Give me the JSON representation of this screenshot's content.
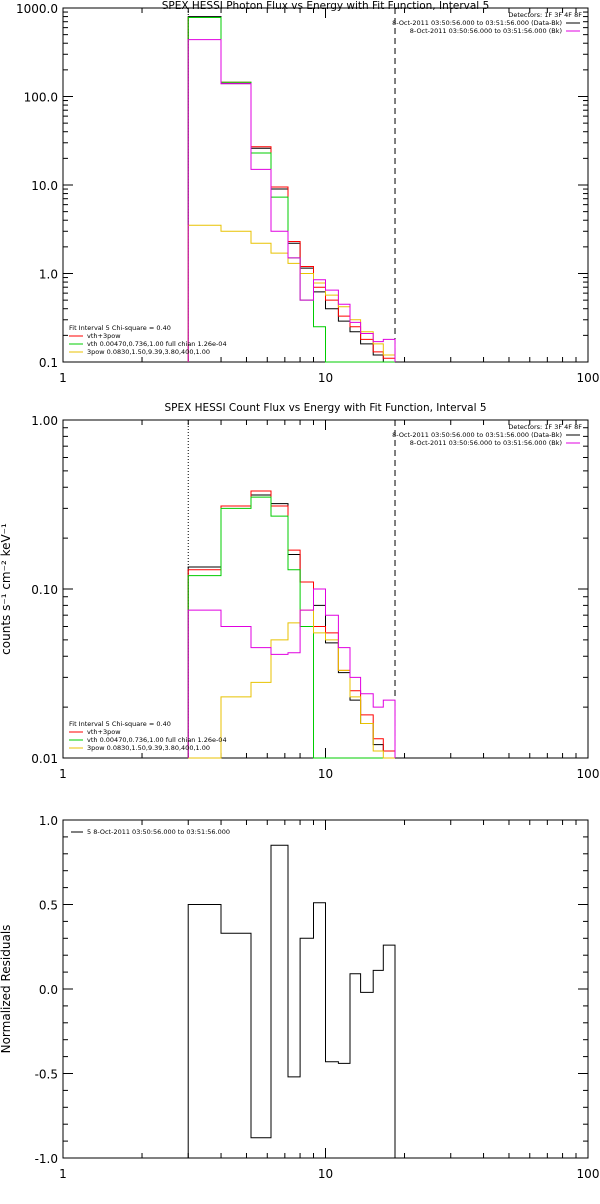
{
  "chart_data": [
    {
      "type": "line",
      "title": "SPEX HESSI Photon Flux vs Energy with Fit Function, Interval 5",
      "xlabel": "",
      "ylabel": "",
      "x_scale": "log",
      "y_scale": "log",
      "xlim": [
        1,
        100
      ],
      "ylim": [
        0.1,
        1000
      ],
      "x_ticks": [
        {
          "v": 1,
          "label": "1"
        },
        {
          "v": 10,
          "label": "10"
        },
        {
          "v": 100,
          "label": "100"
        }
      ],
      "y_ticks": [
        {
          "v": 1000,
          "label": "1000.0"
        },
        {
          "v": 100,
          "label": "100.0"
        },
        {
          "v": 10,
          "label": "10.0"
        },
        {
          "v": 1,
          "label": "1.0"
        },
        {
          "v": 0.1,
          "label": "0.1"
        }
      ],
      "vlines": [
        {
          "x": 3.0,
          "style": "dotted",
          "color": "#000000"
        },
        {
          "x": 18.4,
          "style": "dashed",
          "color": "#000000"
        }
      ],
      "edges": [
        3.0,
        4.0,
        5.2,
        6.2,
        7.2,
        8.0,
        9.0,
        10.0,
        11.2,
        12.4,
        13.6,
        15.2,
        16.6,
        18.4
      ],
      "series": [
        {
          "name": "",
          "color": "#000000",
          "values": [
            800,
            140,
            26,
            9,
            2.2,
            1.15,
            0.62,
            0.4,
            0.29,
            0.22,
            0.16,
            0.12,
            0.1
          ]
        },
        {
          "name": "vth+3pow",
          "color": "#ff0000",
          "values": [
            780,
            145,
            27,
            9.5,
            2.3,
            1.2,
            0.7,
            0.5,
            0.33,
            0.25,
            0.18,
            0.13,
            0.11
          ]
        },
        {
          "name": "vth 0.00470,0.736,1.00   full chian 1.26e-04",
          "color": "#00cc00",
          "values": [
            780,
            145,
            23,
            7.3,
            1.5,
            0.5,
            0.25,
            0.1,
            0.1,
            0.1,
            0.1,
            0.1,
            0.1
          ]
        },
        {
          "name": "3pow 0.0830,1.50,9.39,3.80,400,1.00",
          "color": "#e8c200",
          "values": [
            3.5,
            3.0,
            2.2,
            1.7,
            1.3,
            1.0,
            0.78,
            0.57,
            0.42,
            0.3,
            0.22,
            0.16,
            0.12
          ]
        },
        {
          "name": "",
          "color": "#e000e0",
          "values": [
            440,
            140,
            15,
            3.0,
            1.5,
            0.5,
            0.85,
            0.65,
            0.45,
            0.28,
            0.21,
            0.17,
            0.18
          ]
        }
      ],
      "legend_position": "bottom-left",
      "legend_header": "Fit Interval 5    Chi-square = 0.40",
      "detectors_text": "Detectors: 1F 3F 4F 8F",
      "time_lines": [
        {
          "text": "8-Oct-2011 03:50:56.000 to 03:51:56.000 (Data-Bk)",
          "color": "#000000"
        },
        {
          "text": "8-Oct-2011 03:50:56.000 to 03:51:56.000 (Bk)",
          "color": "#e000e0"
        }
      ]
    },
    {
      "type": "line",
      "title": "SPEX HESSI Count Flux vs Energy with Fit Function, Interval 5",
      "xlabel": "",
      "ylabel": "counts s⁻¹ cm⁻² keV⁻¹",
      "x_scale": "log",
      "y_scale": "log",
      "xlim": [
        1,
        100
      ],
      "ylim": [
        0.01,
        1.0
      ],
      "x_ticks": [
        {
          "v": 1,
          "label": "1"
        },
        {
          "v": 10,
          "label": "10"
        },
        {
          "v": 100,
          "label": "100"
        }
      ],
      "y_ticks": [
        {
          "v": 1.0,
          "label": "1.00"
        },
        {
          "v": 0.1,
          "label": "0.10"
        },
        {
          "v": 0.01,
          "label": "0.01"
        }
      ],
      "vlines": [
        {
          "x": 3.0,
          "style": "dotted",
          "color": "#000000"
        },
        {
          "x": 18.4,
          "style": "dashed",
          "color": "#000000"
        }
      ],
      "edges": [
        3.0,
        4.0,
        5.2,
        6.2,
        7.2,
        8.0,
        9.0,
        10.0,
        11.2,
        12.4,
        13.6,
        15.2,
        16.6,
        18.4
      ],
      "series": [
        {
          "name": "",
          "color": "#000000",
          "values": [
            0.135,
            0.31,
            0.36,
            0.32,
            0.16,
            0.11,
            0.08,
            0.048,
            0.032,
            0.022,
            0.016,
            0.012,
            0.011
          ]
        },
        {
          "name": "vth+3pow",
          "color": "#ff0000",
          "values": [
            0.13,
            0.31,
            0.38,
            0.31,
            0.17,
            0.11,
            0.06,
            0.055,
            0.033,
            0.025,
            0.018,
            0.013,
            0.011
          ]
        },
        {
          "name": "vth 0.00470,0.736,1.00   full chian 1.26e-04",
          "color": "#00cc00",
          "values": [
            0.12,
            0.3,
            0.35,
            0.27,
            0.13,
            0.06,
            0.01,
            0.01,
            0.01,
            0.01,
            0.01,
            0.01,
            0.01
          ]
        },
        {
          "name": "3pow 0.0830,1.50,9.39,3.80,400,1.00",
          "color": "#e8c200",
          "values": [
            0.005,
            0.023,
            0.028,
            0.05,
            0.063,
            0.075,
            0.055,
            0.05,
            0.033,
            0.023,
            0.016,
            0.011,
            0.008
          ]
        },
        {
          "name": "",
          "color": "#e000e0",
          "values": [
            0.075,
            0.06,
            0.045,
            0.041,
            0.042,
            0.075,
            0.1,
            0.07,
            0.045,
            0.03,
            0.024,
            0.02,
            0.022
          ]
        }
      ],
      "legend_position": "bottom-left",
      "legend_header": "Fit Interval 5    Chi-square = 0.40",
      "detectors_text": "Detectors: 1F 3F 4F 8F",
      "time_lines": [
        {
          "text": "8-Oct-2011 03:50:56.000 to 03:51:56.000 (Data-Bk)",
          "color": "#000000"
        },
        {
          "text": "8-Oct-2011 03:50:56.000 to 03:51:56.000 (Bk)",
          "color": "#e000e0"
        }
      ]
    },
    {
      "type": "line",
      "title": "",
      "xlabel": "",
      "ylabel": "Normalized Residuals",
      "x_scale": "log",
      "y_scale": "linear",
      "xlim": [
        1,
        100
      ],
      "ylim": [
        -1.0,
        1.0
      ],
      "x_ticks": [
        {
          "v": 1,
          "label": "1"
        },
        {
          "v": 10,
          "label": "10"
        },
        {
          "v": 100,
          "label": "100"
        }
      ],
      "y_ticks": [
        {
          "v": 1.0,
          "label": "1.0"
        },
        {
          "v": 0.5,
          "label": "0.5"
        },
        {
          "v": 0.0,
          "label": "0.0"
        },
        {
          "v": -0.5,
          "label": "-0.5"
        },
        {
          "v": -1.0,
          "label": "-1.0"
        }
      ],
      "edges": [
        3.0,
        4.0,
        5.2,
        6.2,
        7.2,
        8.0,
        9.0,
        10.0,
        11.2,
        12.4,
        13.6,
        15.2,
        16.6,
        18.4
      ],
      "series": [
        {
          "name": "5  8-Oct-2011 03:50:56.000 to 03:51:56.000",
          "color": "#000000",
          "values": [
            0.5,
            0.33,
            -0.88,
            0.85,
            -0.52,
            0.3,
            0.51,
            -0.43,
            -0.44,
            0.09,
            -0.02,
            0.11,
            0.26
          ]
        }
      ],
      "legend_position": "top-left"
    }
  ]
}
